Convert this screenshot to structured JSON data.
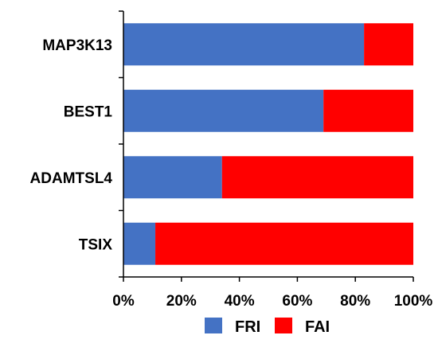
{
  "chart_data": {
    "type": "bar",
    "orientation": "horizontal",
    "stacked": true,
    "percent_stacked": true,
    "categories": [
      "MAP3K13",
      "BEST1",
      "ADAMTSL4",
      "TSIX"
    ],
    "series": [
      {
        "name": "FRI",
        "color": "#4472C4",
        "values": [
          83,
          69,
          34,
          11
        ]
      },
      {
        "name": "FAI",
        "color": "#FF0000",
        "values": [
          17,
          31,
          66,
          89
        ]
      }
    ],
    "x_ticks": [
      "0%",
      "20%",
      "40%",
      "60%",
      "80%",
      "100%"
    ],
    "xlim": [
      0,
      100
    ],
    "title": "",
    "xlabel": "",
    "ylabel": "",
    "grid": false,
    "legend_position": "bottom"
  }
}
